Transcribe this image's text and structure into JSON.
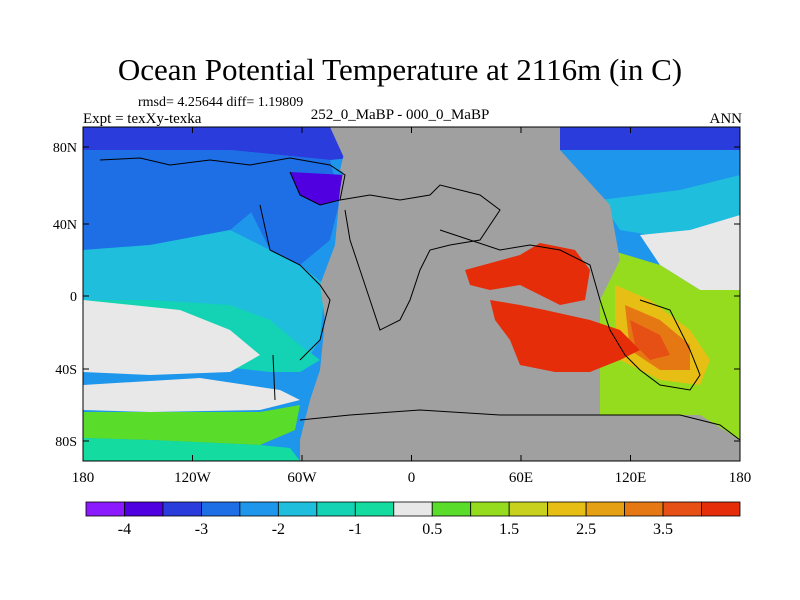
{
  "title": "Ocean Potential Temperature at 2116m (in C)",
  "stats": "rmsd= 4.25644 diff= 1.19809",
  "experiment": "Expt = texXy-texka",
  "difference": "252_0_MaBP - 000_0_MaBP",
  "season": "ANN",
  "colors": {
    "land": "#a0a0a0",
    "scale": [
      "#8c1aff",
      "#5000e0",
      "#2a3cdc",
      "#1e6ee6",
      "#1e96eb",
      "#1ebedc",
      "#14d2b4",
      "#14dca0",
      "#e8e8e8",
      "#5adc2a",
      "#96dc1e",
      "#c8d21e",
      "#e6be14",
      "#e6a014",
      "#e67814",
      "#e65014",
      "#e62d0a"
    ]
  },
  "axes": {
    "x_ticks": [
      "180",
      "120W",
      "60W",
      "0",
      "60E",
      "120E",
      "180"
    ],
    "y_ticks": [
      "80N",
      "40N",
      "0",
      "40S",
      "80S"
    ]
  },
  "colorbar": {
    "labels": [
      "-4",
      "-3",
      "-2",
      "-1",
      "0.5",
      "1.5",
      "2.5",
      "3.5"
    ]
  }
}
